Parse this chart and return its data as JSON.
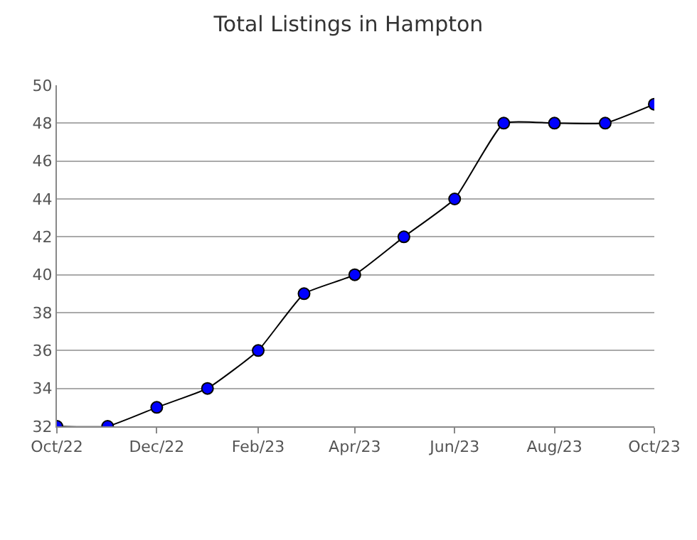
{
  "chart_data": {
    "type": "line",
    "title": "Total Listings in Hampton",
    "x": [
      "2022-10",
      "2022-11",
      "2022-12",
      "2023-01",
      "2023-02",
      "2023-03",
      "2023-04",
      "2023-05",
      "2023-06",
      "2023-07",
      "2023-08",
      "2023-09",
      "2023-10"
    ],
    "series": [
      {
        "color": "#0000ff",
        "values": [
          32,
          32,
          33,
          34,
          36,
          39,
          40,
          42,
          44,
          48,
          48,
          48,
          49
        ]
      }
    ],
    "xlim": [
      "2022-10",
      "2023-10"
    ],
    "xticks": [
      {
        "value": "2022-10",
        "label": "Oct/22"
      },
      {
        "value": "2022-12",
        "label": "Dec/22"
      },
      {
        "value": "2023-02",
        "label": "Feb/23"
      },
      {
        "value": "2023-04",
        "label": "Apr/23"
      },
      {
        "value": "2023-06",
        "label": "Jun/23"
      },
      {
        "value": "2023-08",
        "label": "Aug/23"
      },
      {
        "value": "2023-10",
        "label": "Oct/23"
      }
    ],
    "ylim": [
      32,
      50
    ],
    "yticks": [
      32,
      34,
      36,
      38,
      40,
      42,
      44,
      46,
      48,
      50
    ],
    "grid": "y",
    "legend": false,
    "marker": "circle",
    "line_style": "solid"
  }
}
